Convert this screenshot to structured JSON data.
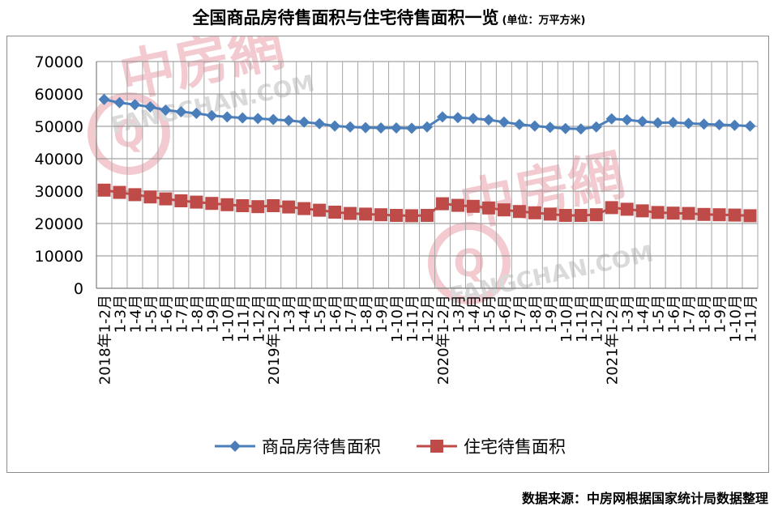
{
  "title": {
    "main": "全国商品房待售面积与住宅待售面积一览",
    "unit": "(单位：万平方米)"
  },
  "source": "数据来源：中房网根据国家统计局数据整理",
  "watermark": {
    "brand": "中房網",
    "url": "FANGCHAN.COM",
    "logo_letter": "Q",
    "color": "#e8a0a8"
  },
  "chart_data": {
    "type": "line",
    "ylim": [
      0,
      70000
    ],
    "yticks": [
      0,
      10000,
      20000,
      30000,
      40000,
      50000,
      60000,
      70000
    ],
    "grid": true,
    "legend": "bottom",
    "x": [
      "2018年1-2月",
      "1-3月",
      "1-4月",
      "1-5月",
      "1-6月",
      "1-7月",
      "1-8月",
      "1-9月",
      "1-10月",
      "1-11月",
      "1-12月",
      "2019年1-2月",
      "1-3月",
      "1-4月",
      "1-5月",
      "1-6月",
      "1-7月",
      "1-8月",
      "1-9月",
      "1-10月",
      "1-11月",
      "1-12月",
      "2020年1-2月",
      "1-3月",
      "1-4月",
      "1-5月",
      "1-6月",
      "1-7月",
      "1-8月",
      "1-9月",
      "1-10月",
      "1-11月",
      "1-12月",
      "2021年1-2月",
      "1-3月",
      "1-4月",
      "1-5月",
      "1-6月",
      "1-7月",
      "1-8月",
      "1-9月",
      "1-10月",
      "1-11月"
    ],
    "series": [
      {
        "name": "商品房待售面积",
        "color": "#4a7ebb",
        "marker": "diamond",
        "values": [
          58300,
          57300,
          56700,
          56000,
          55000,
          54500,
          54000,
          53300,
          52900,
          52600,
          52400,
          52100,
          51800,
          51300,
          50800,
          50100,
          49800,
          49600,
          49500,
          49500,
          49400,
          49800,
          52900,
          52700,
          52400,
          52000,
          51300,
          50600,
          50100,
          49700,
          49300,
          49200,
          49800,
          52300,
          52000,
          51500,
          51100,
          51200,
          50900,
          50700,
          50500,
          50300,
          50100
        ]
      },
      {
        "name": "住宅待售面积",
        "color": "#be4b48",
        "marker": "square",
        "values": [
          30300,
          29600,
          28900,
          28200,
          27600,
          27000,
          26600,
          26200,
          25800,
          25500,
          25200,
          25500,
          25100,
          24600,
          24100,
          23500,
          23100,
          22900,
          22700,
          22500,
          22400,
          22500,
          26100,
          25600,
          25300,
          24800,
          24200,
          23700,
          23300,
          22900,
          22500,
          22500,
          22700,
          24900,
          24400,
          23900,
          23400,
          23200,
          23100,
          22800,
          22700,
          22600,
          22400
        ]
      }
    ]
  }
}
